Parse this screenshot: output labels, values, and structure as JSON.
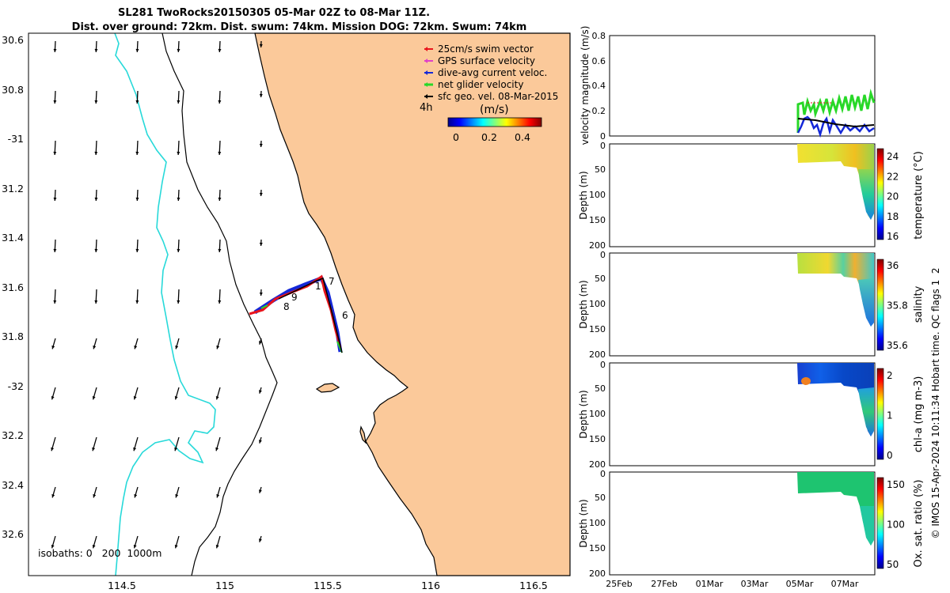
{
  "header": {
    "title_line1": "SL281 TwoRocks20150305 05-Mar 02Z to 08-Mar 11Z.",
    "title_line2": "Dist. over ground: 72km. Dist. swum: 74km. Mission DOG: 72km. Swum: 74km"
  },
  "map": {
    "lat_ticks": [
      "30.6",
      "30.8",
      "-31",
      "31.2",
      "31.4",
      "31.6",
      "31.8",
      "-32",
      "32.2",
      "32.4",
      "32.6"
    ],
    "lon_ticks": [
      "114.5",
      "115",
      "115.5",
      "116",
      "116.5"
    ],
    "isobaths_label": "isobaths: 0   200  1000m",
    "legend": [
      {
        "label": "25cm/s swim vector",
        "color": "#e8141c"
      },
      {
        "label": "GPS surface velocity",
        "color": "#e040c8"
      },
      {
        "label": "dive-avg current veloc.",
        "color": "#1428d8"
      },
      {
        "label": "net glider velocity",
        "color": "#28d828"
      },
      {
        "label": "sfc geo. vel. 08-Mar-2015",
        "color": "#000000"
      }
    ],
    "duration_label": "4h",
    "colorbar": {
      "title": "(m/s)",
      "ticks": [
        "0",
        "0.2",
        "0.4"
      ]
    },
    "track_labels": [
      "1",
      "7",
      "9",
      "8",
      "6"
    ],
    "colors": {
      "land": "#fbc99a",
      "contour_200": "#000000",
      "contour_1000": "#27d9d9"
    }
  },
  "velocity_panel": {
    "ylabel": "velocity magnitude (m/s)",
    "yticks": [
      "0",
      "0.2",
      "0.4",
      "0.6",
      "0.8"
    ]
  },
  "sections": [
    {
      "depth_label": "Depth (m)",
      "ticks": [
        "0",
        "50",
        "100",
        "150",
        "200"
      ],
      "cb_label": "temperature (°C)",
      "cb_ticks": [
        "24",
        "22",
        "20",
        "18",
        "16"
      ]
    },
    {
      "depth_label": "Depth (m)",
      "ticks": [
        "0",
        "50",
        "100",
        "150",
        "200"
      ],
      "cb_label": "salinity",
      "cb_ticks": [
        "36",
        "35.8",
        "35.6"
      ]
    },
    {
      "depth_label": "Depth (m)",
      "ticks": [
        "0",
        "50",
        "100",
        "150",
        "200"
      ],
      "cb_label": "chl-a (mg m-3)",
      "cb_ticks": [
        "2",
        "1",
        "0"
      ]
    },
    {
      "depth_label": "Depth (m)",
      "ticks": [
        "0",
        "50",
        "100",
        "150",
        "200"
      ],
      "cb_label": "Ox. sat. ratio (%)",
      "cb_ticks": [
        "150",
        "100",
        "50"
      ]
    }
  ],
  "time_ticks": [
    "25Feb",
    "27Feb",
    "01Mar",
    "03Mar",
    "05Mar",
    "07Mar"
  ],
  "side_note": "© IMOS 15-Apr-2024 10:11:34 Hobart time. QC flags 1  2"
}
